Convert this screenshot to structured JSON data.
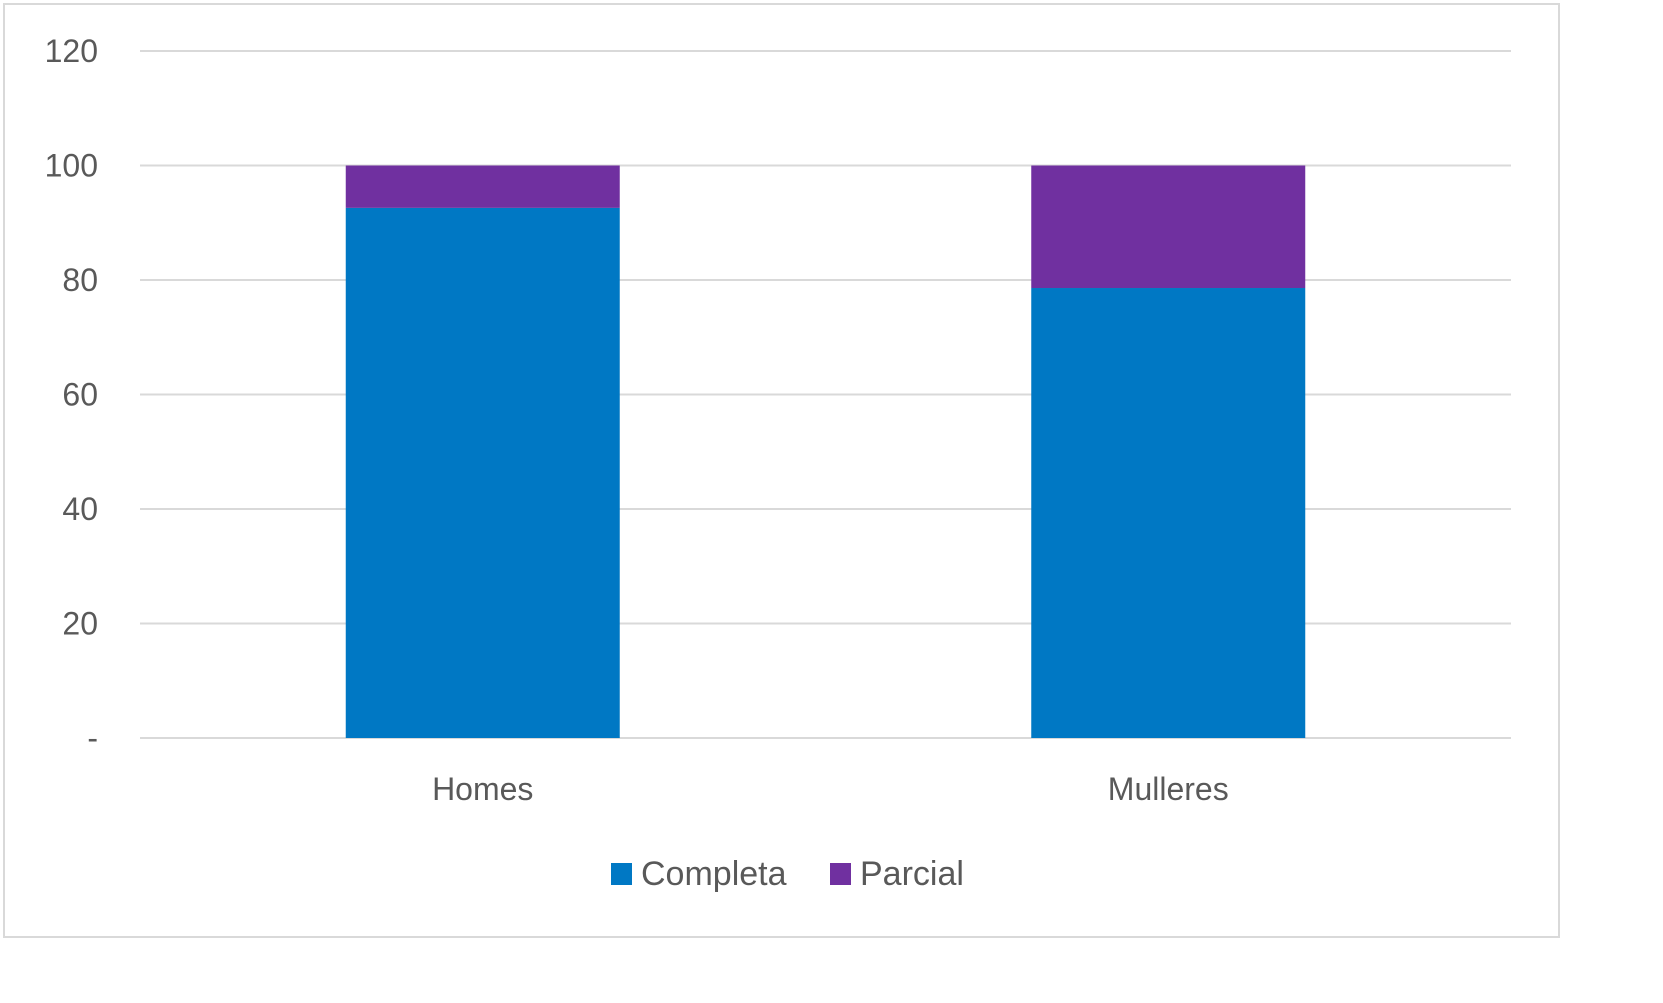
{
  "chart_data": {
    "type": "bar",
    "stacked": true,
    "categories": [
      "Homes",
      "Mulleres"
    ],
    "series": [
      {
        "name": "Completa",
        "values": [
          92.6,
          78.6
        ],
        "color": "#0078C4"
      },
      {
        "name": "Parcial",
        "values": [
          7.4,
          21.4
        ],
        "color": "#7030A0"
      }
    ],
    "ylim": [
      0,
      120
    ],
    "yticks": [
      0,
      20,
      40,
      60,
      80,
      100,
      120
    ],
    "ytick_labels": [
      "-",
      "20",
      "40",
      "60",
      "80",
      "100",
      "120"
    ],
    "grid": true,
    "legend_position": "bottom",
    "title": "",
    "xlabel": "",
    "ylabel": ""
  }
}
